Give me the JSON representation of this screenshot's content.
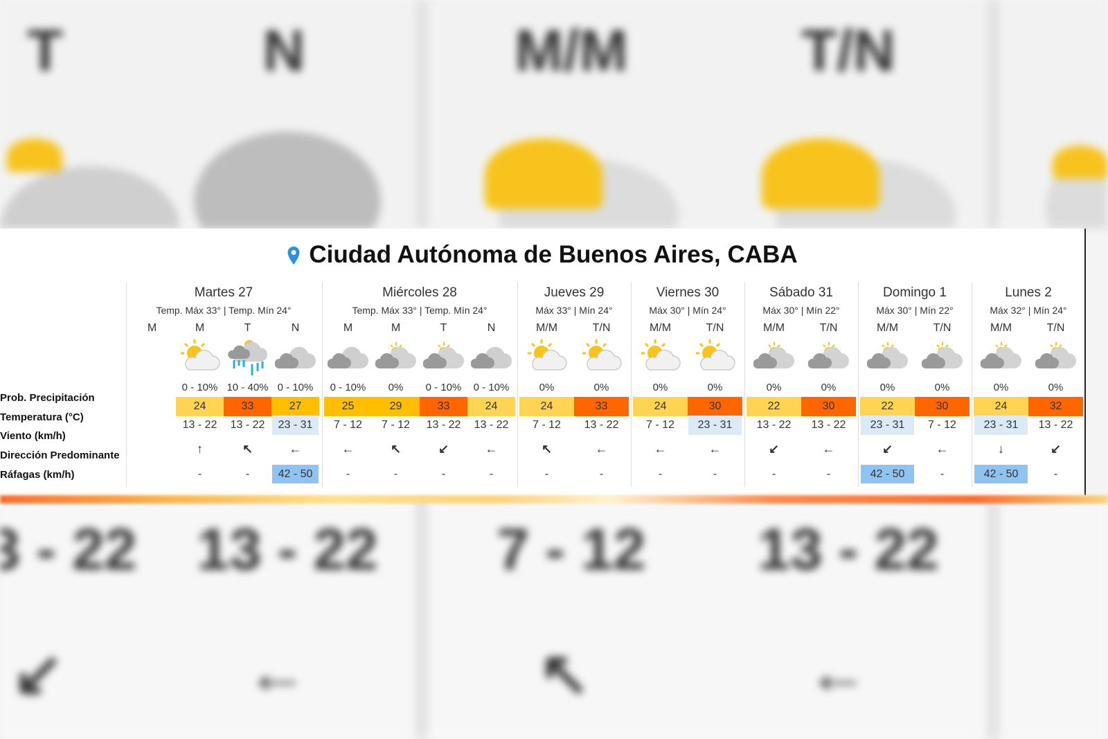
{
  "background": {
    "top_labels": [
      "T",
      "N",
      "M/M",
      "T/N"
    ],
    "bottom_labels": [
      "3 - 22",
      "13 - 22",
      "7 - 12",
      "13 - 22"
    ],
    "bottom_arrows": [
      "↙",
      "←",
      "↖",
      "←"
    ]
  },
  "title": "Ciudad Autónoma de Buenos Aires, CABA",
  "title_icon": "location-pin-icon",
  "colors": {
    "pin": "#2f8fe0",
    "temp_low": "#ffd452",
    "temp_mid": "#ffbf00",
    "temp_high": "#ff6600",
    "wind_highlight": "#dce9f6",
    "gust_highlight": "#8fc3f2"
  },
  "row_labels": [
    "Prob. Precipitación",
    "Temperatura (°C)",
    "Viento (km/h)",
    "Dirección Predominante",
    "Ráfagas (km/h)"
  ],
  "days": [
    {
      "name": "Martes 27",
      "summary": "Temp. Máx 33° | Temp. Mín 24°",
      "periods": [
        {
          "label": "M",
          "icon": "",
          "prob": "",
          "temp": "",
          "level": "",
          "wind": "",
          "wind_hl": false,
          "dir": "",
          "gust": "",
          "gust_hl": false
        },
        {
          "label": "M",
          "icon": "sun-cloud",
          "prob": "0 - 10%",
          "temp": "24",
          "level": "low",
          "wind": "13 - 22",
          "wind_hl": false,
          "dir": "↑",
          "gust": "-",
          "gust_hl": false
        },
        {
          "label": "T",
          "icon": "rain",
          "prob": "10 - 40%",
          "temp": "33",
          "level": "high",
          "wind": "13 - 22",
          "wind_hl": false,
          "dir": "↖",
          "gust": "-",
          "gust_hl": false
        },
        {
          "label": "N",
          "icon": "cloudy",
          "prob": "0 - 10%",
          "temp": "27",
          "level": "mid",
          "wind": "23 - 31",
          "wind_hl": true,
          "dir": "←",
          "gust": "42 - 50",
          "gust_hl": true
        }
      ]
    },
    {
      "name": "Miércoles 28",
      "summary": "Temp. Máx 33° | Temp. Mín 24°",
      "periods": [
        {
          "label": "M",
          "icon": "cloudy",
          "prob": "0 - 10%",
          "temp": "25",
          "level": "mid",
          "wind": "7 - 12",
          "wind_hl": false,
          "dir": "←",
          "gust": "-",
          "gust_hl": false
        },
        {
          "label": "M",
          "icon": "cloudy-sun",
          "prob": "0%",
          "temp": "29",
          "level": "mid",
          "wind": "7 - 12",
          "wind_hl": false,
          "dir": "↖",
          "gust": "-",
          "gust_hl": false
        },
        {
          "label": "T",
          "icon": "cloudy-sun",
          "prob": "0 - 10%",
          "temp": "33",
          "level": "high",
          "wind": "13 - 22",
          "wind_hl": false,
          "dir": "↙",
          "gust": "-",
          "gust_hl": false
        },
        {
          "label": "N",
          "icon": "cloudy",
          "prob": "0 - 10%",
          "temp": "24",
          "level": "low",
          "wind": "13 - 22",
          "wind_hl": false,
          "dir": "←",
          "gust": "-",
          "gust_hl": false
        }
      ]
    },
    {
      "name": "Jueves 29",
      "summary": "Máx 33° | Mín 24°",
      "periods": [
        {
          "label": "M/M",
          "icon": "sun-cloud",
          "prob": "0%",
          "temp": "24",
          "level": "low",
          "wind": "7 - 12",
          "wind_hl": false,
          "dir": "↖",
          "gust": "-",
          "gust_hl": false
        },
        {
          "label": "T/N",
          "icon": "sun-cloud",
          "prob": "0%",
          "temp": "33",
          "level": "high",
          "wind": "13 - 22",
          "wind_hl": false,
          "dir": "←",
          "gust": "-",
          "gust_hl": false
        }
      ]
    },
    {
      "name": "Viernes 30",
      "summary": "Máx 30° | Mín 24°",
      "periods": [
        {
          "label": "M/M",
          "icon": "sun-cloud",
          "prob": "0%",
          "temp": "24",
          "level": "low",
          "wind": "7 - 12",
          "wind_hl": false,
          "dir": "←",
          "gust": "-",
          "gust_hl": false
        },
        {
          "label": "T/N",
          "icon": "sun-cloud",
          "prob": "0%",
          "temp": "30",
          "level": "high",
          "wind": "23 - 31",
          "wind_hl": true,
          "dir": "←",
          "gust": "-",
          "gust_hl": false
        }
      ]
    },
    {
      "name": "Sábado 31",
      "summary": "Máx 30° | Mín 22°",
      "periods": [
        {
          "label": "M/M",
          "icon": "cloudy-sun",
          "prob": "0%",
          "temp": "22",
          "level": "low",
          "wind": "13 - 22",
          "wind_hl": false,
          "dir": "↙",
          "gust": "-",
          "gust_hl": false
        },
        {
          "label": "T/N",
          "icon": "cloudy-sun",
          "prob": "0%",
          "temp": "30",
          "level": "high",
          "wind": "13 - 22",
          "wind_hl": false,
          "dir": "←",
          "gust": "-",
          "gust_hl": false
        }
      ]
    },
    {
      "name": "Domingo 1",
      "summary": "Máx 30° | Mín 22°",
      "periods": [
        {
          "label": "M/M",
          "icon": "cloudy-sun",
          "prob": "0%",
          "temp": "22",
          "level": "low",
          "wind": "23 - 31",
          "wind_hl": true,
          "dir": "↙",
          "gust": "42 - 50",
          "gust_hl": true
        },
        {
          "label": "T/N",
          "icon": "cloudy-sun",
          "prob": "0%",
          "temp": "30",
          "level": "high",
          "wind": "7 - 12",
          "wind_hl": false,
          "dir": "←",
          "gust": "-",
          "gust_hl": false
        }
      ]
    },
    {
      "name": "Lunes 2",
      "summary": "Máx 32° | Mín 24°",
      "periods": [
        {
          "label": "M/M",
          "icon": "cloudy-sun",
          "prob": "0%",
          "temp": "24",
          "level": "low",
          "wind": "23 - 31",
          "wind_hl": true,
          "dir": "↓",
          "gust": "42 - 50",
          "gust_hl": true
        },
        {
          "label": "T/N",
          "icon": "cloudy-sun",
          "prob": "0%",
          "temp": "32",
          "level": "high",
          "wind": "13 - 22",
          "wind_hl": false,
          "dir": "↙",
          "gust": "-",
          "gust_hl": false
        }
      ]
    }
  ]
}
